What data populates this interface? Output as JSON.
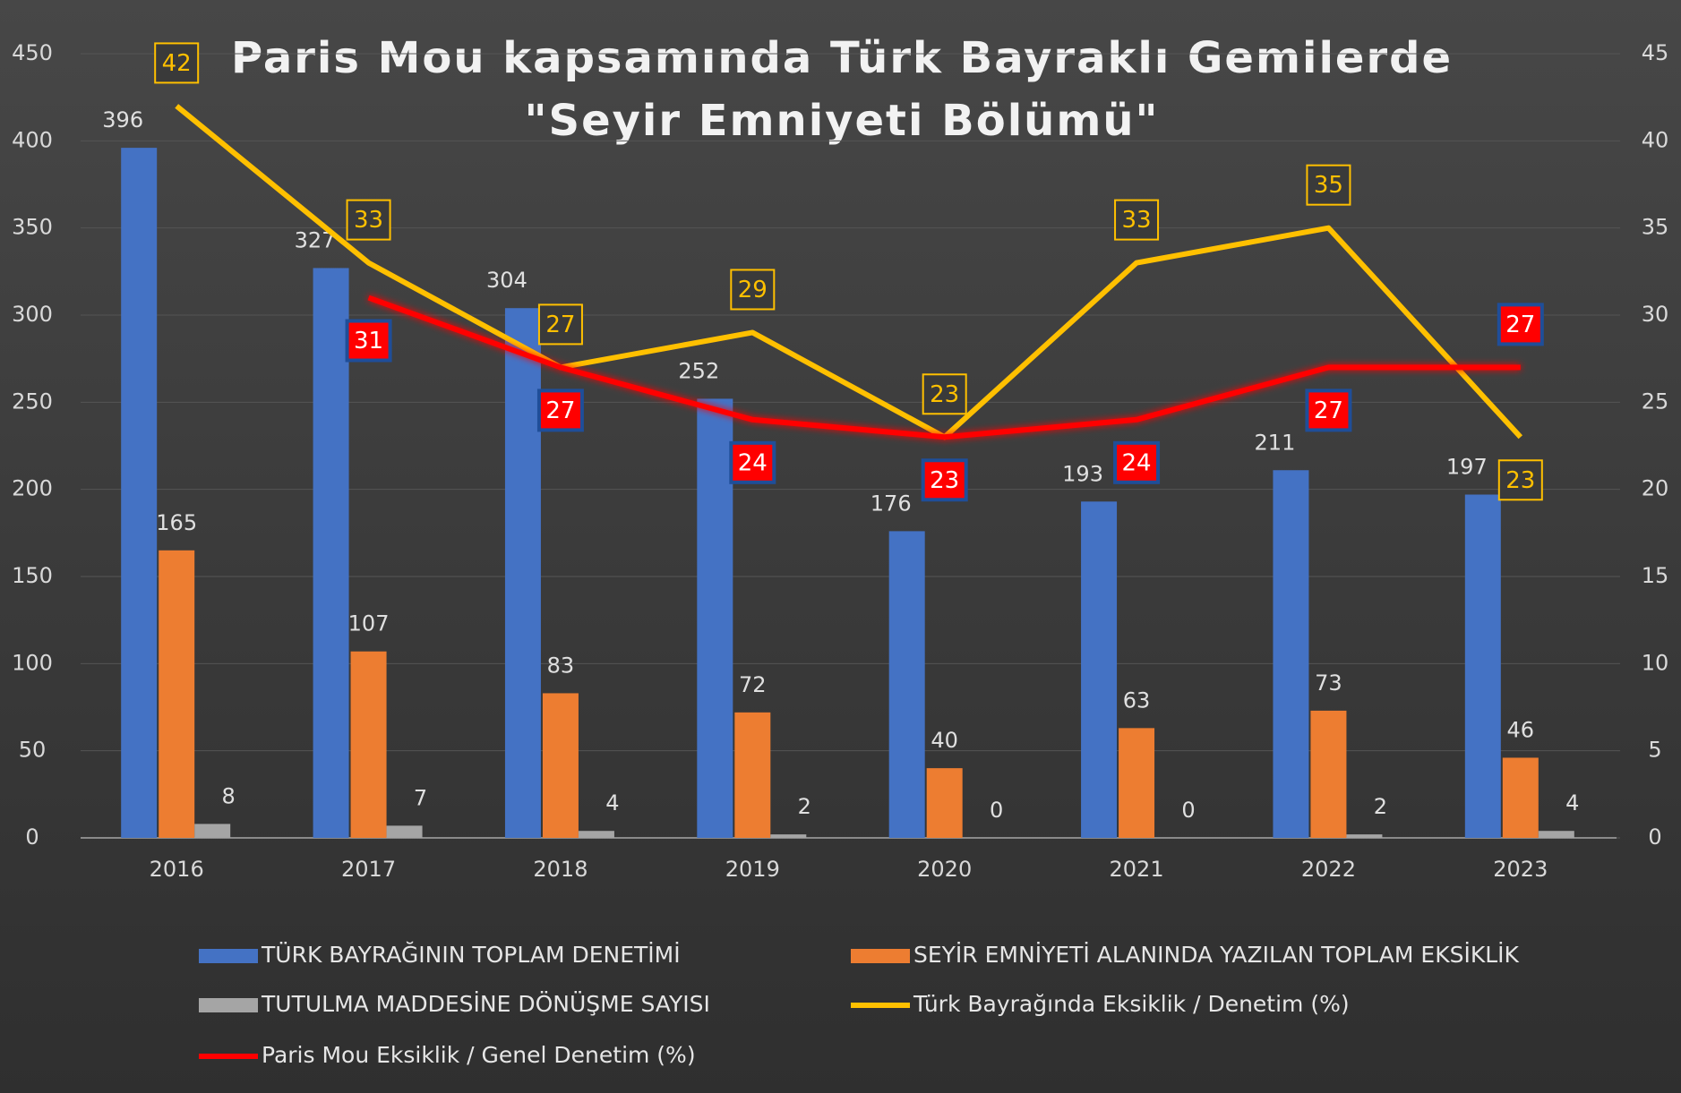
{
  "chart_data": {
    "type": "bar",
    "title": [
      "Paris Mou kapsamında Türk Bayraklı Gemilerde",
      "\"Seyir Emniyeti Bölümü\""
    ],
    "categories": [
      "2016",
      "2017",
      "2018",
      "2019",
      "2020",
      "2021",
      "2022",
      "2023"
    ],
    "series": [
      {
        "name": "TÜRK BAYRAĞININ TOPLAM DENETİMİ",
        "color": "#4472c4",
        "type": "bar",
        "values": [
          396,
          327,
          304,
          252,
          176,
          193,
          211,
          197
        ]
      },
      {
        "name": "SEYİR EMNİYETİ ALANINDA YAZILAN TOPLAM EKSİKLİK",
        "color": "#ed7d31",
        "type": "bar",
        "values": [
          165,
          107,
          83,
          72,
          40,
          63,
          73,
          46
        ]
      },
      {
        "name": "TUTULMA MADDESİNE DÖNÜŞME SAYISI",
        "color": "#a5a5a5",
        "type": "bar",
        "values": [
          8,
          7,
          4,
          2,
          0,
          0,
          2,
          4
        ]
      },
      {
        "name": "Türk Bayrağında Eksiklik / Denetim (%)",
        "color": "#ffc000",
        "type": "line",
        "axis": "y2",
        "values": [
          42,
          33,
          27,
          29,
          23,
          33,
          35,
          23
        ]
      },
      {
        "name": "Paris Mou Eksiklik / Genel  Denetim (%)",
        "color": "#ff0000",
        "type": "line",
        "axis": "y2",
        "values": [
          null,
          31,
          27,
          24,
          23,
          24,
          27,
          27
        ]
      }
    ],
    "ylim": [
      0,
      450
    ],
    "yticks": [
      0,
      50,
      100,
      150,
      200,
      250,
      300,
      350,
      400,
      450
    ],
    "y2lim": [
      0,
      45
    ],
    "y2ticks": [
      0,
      5,
      10,
      15,
      20,
      25,
      30,
      35,
      40,
      45
    ],
    "grid": true
  }
}
